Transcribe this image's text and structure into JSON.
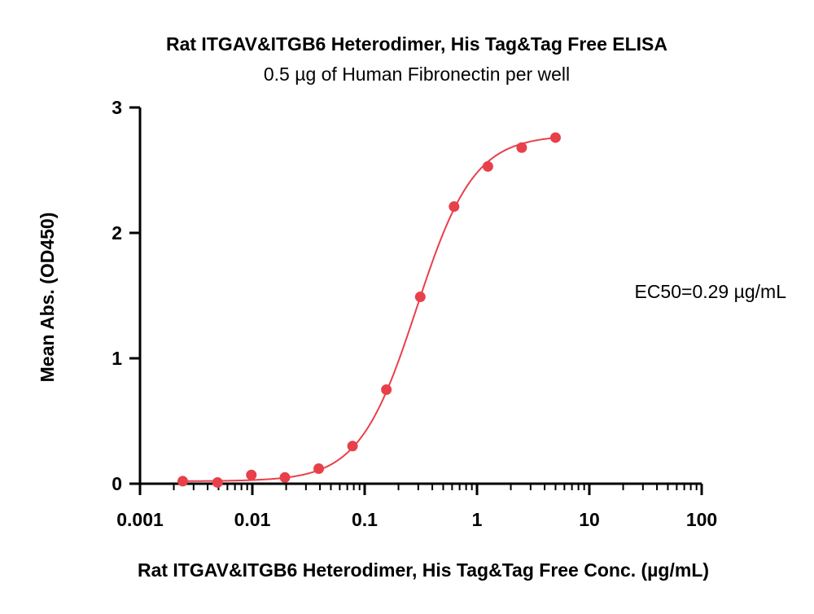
{
  "chart_data": {
    "type": "scatter",
    "title": "Rat ITGAV&ITGB6 Heterodimer, His Tag&Tag Free ELISA",
    "subtitle": "0.5 µg of Human Fibronectin per well",
    "xlabel": "Rat ITGAV&ITGB6 Heterodimer, His Tag&Tag Free Conc. (µg/mL)",
    "ylabel": "Mean Abs. (OD450)",
    "xscale": "log",
    "xlim": [
      0.001,
      100
    ],
    "ylim": [
      0,
      3
    ],
    "x_ticks": [
      0.001,
      0.01,
      0.1,
      1,
      10,
      100
    ],
    "x_tick_labels": [
      "0.001",
      "0.01",
      "0.1",
      "1",
      "10",
      "100"
    ],
    "y_ticks": [
      0,
      1,
      2,
      3
    ],
    "y_tick_labels": [
      "0",
      "1",
      "2",
      "3"
    ],
    "grid": false,
    "annotation": "EC50=0.29 µg/mL",
    "series": [
      {
        "points": [
          {
            "x": 0.0024,
            "y": 0.02
          },
          {
            "x": 0.0049,
            "y": 0.01
          },
          {
            "x": 0.0098,
            "y": 0.07
          },
          {
            "x": 0.0195,
            "y": 0.05
          },
          {
            "x": 0.039,
            "y": 0.12
          },
          {
            "x": 0.078,
            "y": 0.3
          },
          {
            "x": 0.156,
            "y": 0.75
          },
          {
            "x": 0.3125,
            "y": 1.49
          },
          {
            "x": 0.625,
            "y": 2.21
          },
          {
            "x": 1.25,
            "y": 2.53
          },
          {
            "x": 2.5,
            "y": 2.68
          },
          {
            "x": 5.0,
            "y": 2.76
          }
        ],
        "fit": {
          "model": "4PL",
          "bottom": 0.02,
          "top": 2.78,
          "ec50": 0.29,
          "hill": 1.7,
          "x_range": [
            0.0024,
            5.0
          ]
        },
        "color": "#e8404a"
      }
    ]
  }
}
